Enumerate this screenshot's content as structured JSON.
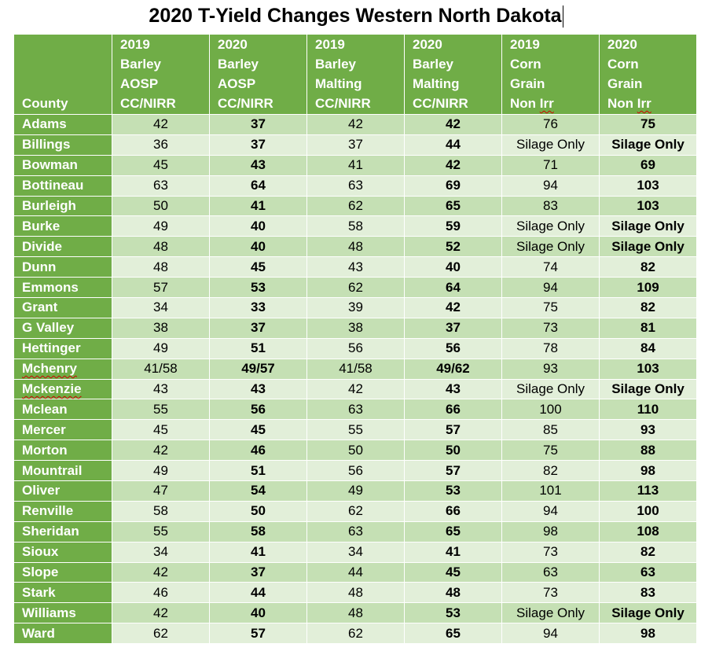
{
  "title": "2020 T-Yield Changes Western North Dakota",
  "headers": [
    {
      "lines": [
        "County"
      ]
    },
    {
      "lines": [
        "2019",
        "Barley",
        "AOSP",
        "CC/NIRR"
      ]
    },
    {
      "lines": [
        "2020",
        "Barley",
        "AOSP",
        "CC/NIRR"
      ]
    },
    {
      "lines": [
        "2019",
        "Barley",
        "Malting",
        "CC/NIRR"
      ]
    },
    {
      "lines": [
        "2020",
        "Barley",
        "Malting",
        "CC/NIRR"
      ]
    },
    {
      "lines": [
        "2019",
        "Corn",
        "Grain",
        "Non Irr"
      ]
    },
    {
      "lines": [
        "2020",
        "Corn",
        "Grain",
        "Non Irr"
      ]
    }
  ],
  "rows": [
    {
      "county": "Adams",
      "values": [
        "42",
        "37",
        "42",
        "42",
        "76",
        "75"
      ]
    },
    {
      "county": "Billings",
      "values": [
        "36",
        "37",
        "37",
        "44",
        "Silage Only",
        "Silage Only"
      ]
    },
    {
      "county": "Bowman",
      "values": [
        "45",
        "43",
        "41",
        "42",
        "71",
        "69"
      ]
    },
    {
      "county": "Bottineau",
      "values": [
        "63",
        "64",
        "63",
        "69",
        "94",
        "103"
      ]
    },
    {
      "county": "Burleigh",
      "values": [
        "50",
        "41",
        "62",
        "65",
        "83",
        "103"
      ]
    },
    {
      "county": "Burke",
      "values": [
        "49",
        "40",
        "58",
        "59",
        "Silage Only",
        "Silage Only"
      ]
    },
    {
      "county": "Divide",
      "values": [
        "48",
        "40",
        "48",
        "52",
        "Silage Only",
        "Silage Only"
      ]
    },
    {
      "county": "Dunn",
      "values": [
        "48",
        "45",
        "43",
        "40",
        "74",
        "82"
      ]
    },
    {
      "county": "Emmons",
      "values": [
        "57",
        "53",
        "62",
        "64",
        "94",
        "109"
      ]
    },
    {
      "county": "Grant",
      "values": [
        "34",
        "33",
        "39",
        "42",
        "75",
        "82"
      ]
    },
    {
      "county": "G Valley",
      "values": [
        "38",
        "37",
        "38",
        "37",
        "73",
        "81"
      ]
    },
    {
      "county": "Hettinger",
      "values": [
        "49",
        "51",
        "56",
        "56",
        "78",
        "84"
      ]
    },
    {
      "county": "Mchenry",
      "values": [
        "41/58",
        "49/57",
        "41/58",
        "49/62",
        "93",
        "103"
      ]
    },
    {
      "county": "Mckenzie",
      "values": [
        "43",
        "43",
        "42",
        "43",
        "Silage Only",
        "Silage Only"
      ]
    },
    {
      "county": "Mclean",
      "values": [
        "55",
        "56",
        "63",
        "66",
        "100",
        "110"
      ]
    },
    {
      "county": "Mercer",
      "values": [
        "45",
        "45",
        "55",
        "57",
        "85",
        "93"
      ]
    },
    {
      "county": "Morton",
      "values": [
        "42",
        "46",
        "50",
        "50",
        "75",
        "88"
      ]
    },
    {
      "county": "Mountrail",
      "values": [
        "49",
        "51",
        "56",
        "57",
        "82",
        "98"
      ]
    },
    {
      "county": "Oliver",
      "values": [
        "47",
        "54",
        "49",
        "53",
        "101",
        "113"
      ]
    },
    {
      "county": "Renville",
      "values": [
        "58",
        "50",
        "62",
        "66",
        "94",
        "100"
      ]
    },
    {
      "county": "Sheridan",
      "values": [
        "55",
        "58",
        "63",
        "65",
        "98",
        "108"
      ]
    },
    {
      "county": "Sioux",
      "values": [
        "34",
        "41",
        "34",
        "41",
        "73",
        "82"
      ]
    },
    {
      "county": "Slope",
      "values": [
        "42",
        "37",
        "44",
        "45",
        "63",
        "63"
      ]
    },
    {
      "county": "Stark",
      "values": [
        "46",
        "44",
        "48",
        "48",
        "73",
        "83"
      ]
    },
    {
      "county": "Williams",
      "values": [
        "42",
        "40",
        "48",
        "53",
        "Silage Only",
        "Silage Only"
      ]
    },
    {
      "county": "Ward",
      "values": [
        "62",
        "57",
        "62",
        "65",
        "94",
        "98"
      ]
    }
  ],
  "colors": {
    "header_bg": "#70ad47",
    "row_band_dark": "#c5e0b4",
    "row_band_light": "#e2efd9",
    "spellcheck_underline": "#d00000"
  }
}
